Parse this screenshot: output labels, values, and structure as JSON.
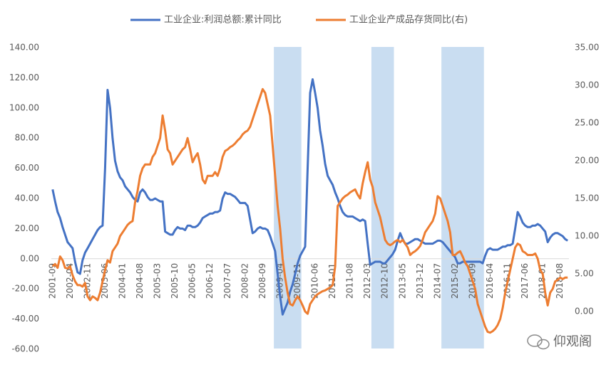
{
  "chart_data": {
    "type": "line",
    "legend": "top",
    "watermark": "仰观阁",
    "categories": [
      "2001-09",
      null,
      null,
      null,
      null,
      null,
      null,
      "2002-04",
      null,
      null,
      null,
      null,
      null,
      null,
      "2002-11",
      null,
      null,
      null,
      null,
      null,
      null,
      "2003-06",
      null,
      null,
      null,
      null,
      null,
      null,
      "2004-01",
      null,
      null,
      null,
      null,
      null,
      null,
      "2004-08",
      null,
      null,
      null,
      null,
      null,
      null,
      "2005-03",
      null,
      null,
      null,
      null,
      null,
      null,
      "2005-10",
      null,
      null,
      null,
      null,
      null,
      null,
      "2006-05",
      null,
      null,
      null,
      null,
      null,
      null,
      "2006-12",
      null,
      null,
      null,
      null,
      null,
      null,
      "2007-07",
      null,
      null,
      null,
      null,
      null,
      null,
      "2008-02",
      null,
      null,
      null,
      null,
      null,
      null,
      "2008-09",
      null,
      null,
      null,
      null,
      null,
      null,
      "2009-04",
      null,
      null,
      null,
      null,
      null,
      null,
      "2009-11",
      null,
      null,
      null,
      null,
      null,
      null,
      "2010-06",
      null,
      null,
      null,
      null,
      null,
      null,
      "2011-01",
      null,
      null,
      null,
      null,
      null,
      null,
      "2011-08",
      null,
      null,
      null,
      null,
      null,
      null,
      "2012-03",
      null,
      null,
      null,
      null,
      null,
      null,
      "2012-10",
      null,
      null,
      null,
      null,
      null,
      null,
      "2013-05",
      null,
      null,
      null,
      null,
      null,
      null,
      "2013-12",
      null,
      null,
      null,
      null,
      null,
      null,
      "2014-07",
      null,
      null,
      null,
      null,
      null,
      null,
      "2015-02",
      null,
      null,
      null,
      null,
      null,
      null,
      "2015-09",
      null,
      null,
      null,
      null,
      null,
      null,
      "2016-04",
      null,
      null,
      null,
      null,
      null,
      null,
      "2016-11",
      null,
      null,
      null,
      null,
      null,
      null,
      "2017-06",
      null,
      null,
      null,
      null,
      null,
      null,
      "2018-01",
      null,
      null,
      null,
      null,
      null,
      null,
      "2018-08",
      null,
      null,
      null
    ],
    "shaded_periods": [
      {
        "from": "2009-02",
        "to": "2009-12"
      },
      {
        "from": "2012-05",
        "to": "2013-01"
      },
      {
        "from": "2014-09",
        "to": "2016-01"
      }
    ],
    "shade_color": "#c9ddf1",
    "series": [
      {
        "name": "工业企业:利润总额:累计同比",
        "color": "#4472c4",
        "axis": "y",
        "values": [
          46,
          38,
          31,
          27,
          21,
          16,
          11,
          9,
          7,
          -2,
          -9,
          -10,
          -1,
          4,
          7,
          10,
          13,
          16,
          19,
          21,
          22,
          60,
          112,
          100,
          80,
          65,
          58,
          54,
          52,
          48,
          46,
          44,
          41,
          39,
          38,
          44,
          46,
          44,
          41,
          39,
          39,
          40,
          39,
          38,
          38,
          18,
          17,
          16,
          16,
          19,
          21,
          20,
          20,
          19,
          22,
          22,
          21,
          21,
          22,
          24,
          27,
          28,
          29,
          30,
          30,
          31,
          31,
          32,
          40,
          44,
          43,
          43,
          42,
          41,
          39,
          37,
          37,
          37,
          35,
          26,
          17,
          18,
          20,
          21,
          20,
          20,
          19,
          15,
          10,
          5,
          -10,
          -25,
          -37,
          -33,
          -29,
          -22,
          -17,
          -10,
          -3,
          2,
          5,
          8,
          60,
          110,
          119,
          110,
          100,
          85,
          75,
          63,
          55,
          52,
          49,
          44,
          40,
          35,
          31,
          29,
          28,
          28,
          28,
          27,
          26,
          25,
          26,
          25,
          10,
          -4,
          -3,
          -2,
          -2,
          -2,
          -3,
          -3,
          -1,
          1,
          3,
          6,
          12,
          17,
          13,
          10,
          10,
          11,
          12,
          13,
          13,
          12,
          11,
          10,
          10,
          10,
          10,
          11,
          12,
          12,
          11,
          9,
          7,
          5,
          3,
          1,
          -3,
          -3,
          -2,
          -2,
          -2,
          -2,
          -2,
          -2,
          -2,
          -2,
          -3,
          2,
          6,
          7,
          6,
          6,
          6,
          7,
          8,
          8,
          9,
          9,
          10,
          20,
          31,
          28,
          24,
          22,
          21,
          21,
          22,
          22,
          23,
          22,
          20,
          18,
          11,
          14,
          16,
          17,
          17,
          16,
          15,
          13,
          12
        ]
      },
      {
        "name": "工业企业产成品存货同比(右)",
        "color": "#ed7d31",
        "axis": "y2",
        "values": [
          6.0,
          6.3,
          5.8,
          7.3,
          6.8,
          5.8,
          5.7,
          6.0,
          4.8,
          4.0,
          3.5,
          3.5,
          3.3,
          3.8,
          2.0,
          1.5,
          2.0,
          1.8,
          1.5,
          2.5,
          4.0,
          5.5,
          6.8,
          6.5,
          8.0,
          8.5,
          9.0,
          10.0,
          10.5,
          11.0,
          11.5,
          11.8,
          12.0,
          14.5,
          16.0,
          18.0,
          19.0,
          19.5,
          19.5,
          19.5,
          20.5,
          21.0,
          22.0,
          23.0,
          26.0,
          24.0,
          21.5,
          21.0,
          19.5,
          20.0,
          20.5,
          21.0,
          21.5,
          21.8,
          23.0,
          21.5,
          19.8,
          20.5,
          21.0,
          19.5,
          17.5,
          17.0,
          18.0,
          18.0,
          18.0,
          18.5,
          18.0,
          19.0,
          20.5,
          21.3,
          21.5,
          21.8,
          22.0,
          22.3,
          22.7,
          23.0,
          23.5,
          23.8,
          24.0,
          24.5,
          25.5,
          26.5,
          27.5,
          28.5,
          29.5,
          29.0,
          27.5,
          26.0,
          22.0,
          18.0,
          14.0,
          11.0,
          7.0,
          4.5,
          2.5,
          1.0,
          0.8,
          1.5,
          2.0,
          1.5,
          0.8,
          0.0,
          -0.3,
          1.0,
          1.5,
          2.0,
          2.3,
          2.5,
          2.7,
          2.8,
          3.0,
          3.2,
          3.5,
          6.0,
          14.0,
          14.5,
          15.0,
          15.3,
          15.5,
          15.8,
          16.0,
          16.2,
          15.5,
          15.0,
          17.0,
          18.5,
          19.8,
          17.5,
          16.5,
          14.5,
          13.5,
          12.5,
          11.0,
          9.5,
          9.0,
          8.8,
          9.0,
          9.3,
          9.5,
          9.2,
          9.5,
          9.0,
          8.5,
          7.5,
          7.8,
          8.0,
          8.3,
          8.7,
          9.5,
          10.5,
          11.0,
          11.5,
          12.0,
          13.0,
          15.3,
          15.0,
          14.0,
          13.0,
          12.0,
          10.5,
          7.5,
          7.5,
          7.8,
          8.0,
          7.3,
          6.5,
          6.0,
          5.0,
          4.0,
          3.0,
          1.0,
          0.0,
          -1.0,
          -2.0,
          -2.7,
          -2.8,
          -2.6,
          -2.3,
          -1.8,
          -1.0,
          0.5,
          2.5,
          4.0,
          5.5,
          7.0,
          8.5,
          9.0,
          8.8,
          8.0,
          7.8,
          7.5,
          7.5,
          7.5,
          7.7,
          7.0,
          5.5,
          5.0,
          2.5,
          0.8,
          2.5,
          3.0,
          4.0,
          4.2,
          4.5,
          4.3,
          4.5,
          4.5
        ]
      }
    ],
    "ylim": [
      -60,
      140
    ],
    "yticks": [
      {
        "value": 140,
        "label": "140.00"
      },
      {
        "value": 120,
        "label": "120.00"
      },
      {
        "value": 100,
        "label": "100.00"
      },
      {
        "value": 80,
        "label": "80.00"
      },
      {
        "value": 60,
        "label": "60.00"
      },
      {
        "value": 40,
        "label": "40.00"
      },
      {
        "value": 20,
        "label": "20.00"
      },
      {
        "value": 0,
        "label": "0.00"
      },
      {
        "value": -20,
        "label": "-20.00"
      },
      {
        "value": -40,
        "label": "-40.00"
      },
      {
        "value": -60,
        "label": "-60.00"
      }
    ],
    "y2lim": [
      -5,
      35
    ],
    "y2ticks": [
      {
        "value": 35,
        "label": "35.00"
      },
      {
        "value": 30,
        "label": "30.00"
      },
      {
        "value": 25,
        "label": "25.00"
      },
      {
        "value": 20,
        "label": "20.00"
      },
      {
        "value": 15,
        "label": "15.00"
      },
      {
        "value": 10,
        "label": "10.00"
      },
      {
        "value": 5,
        "label": "5.00"
      },
      {
        "value": 0,
        "label": "0.00"
      }
    ]
  }
}
